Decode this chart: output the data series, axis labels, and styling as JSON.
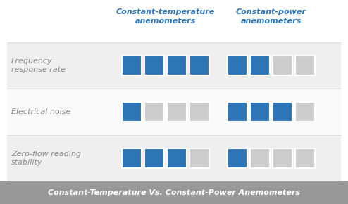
{
  "title": "Constant-Temperature Vs. Constant-Power Anemometers",
  "col1_header": "Constant-temperature\nanemometers",
  "col2_header": "Constant-power\nanemometers",
  "rows": [
    {
      "label": "Frequency\nresponse rate",
      "ct_filled": 4,
      "cp_filled": 2
    },
    {
      "label": "Electrical noise",
      "ct_filled": 1,
      "cp_filled": 3
    },
    {
      "label": "Zero-flow reading\nstability",
      "ct_filled": 3,
      "cp_filled": 1
    }
  ],
  "total_squares": 4,
  "blue_color": "#2E75B6",
  "gray_color": "#CCCCCC",
  "header_color": "#2E75B6",
  "outer_bg": "#FFFFFF",
  "grid_bg_odd": "#EFEFEF",
  "grid_bg_even": "#FAFAFA",
  "banner_color": "#999999",
  "banner_text_color": "#FFFFFF",
  "label_color": "#888888",
  "sep_color": "#DDDDDD"
}
